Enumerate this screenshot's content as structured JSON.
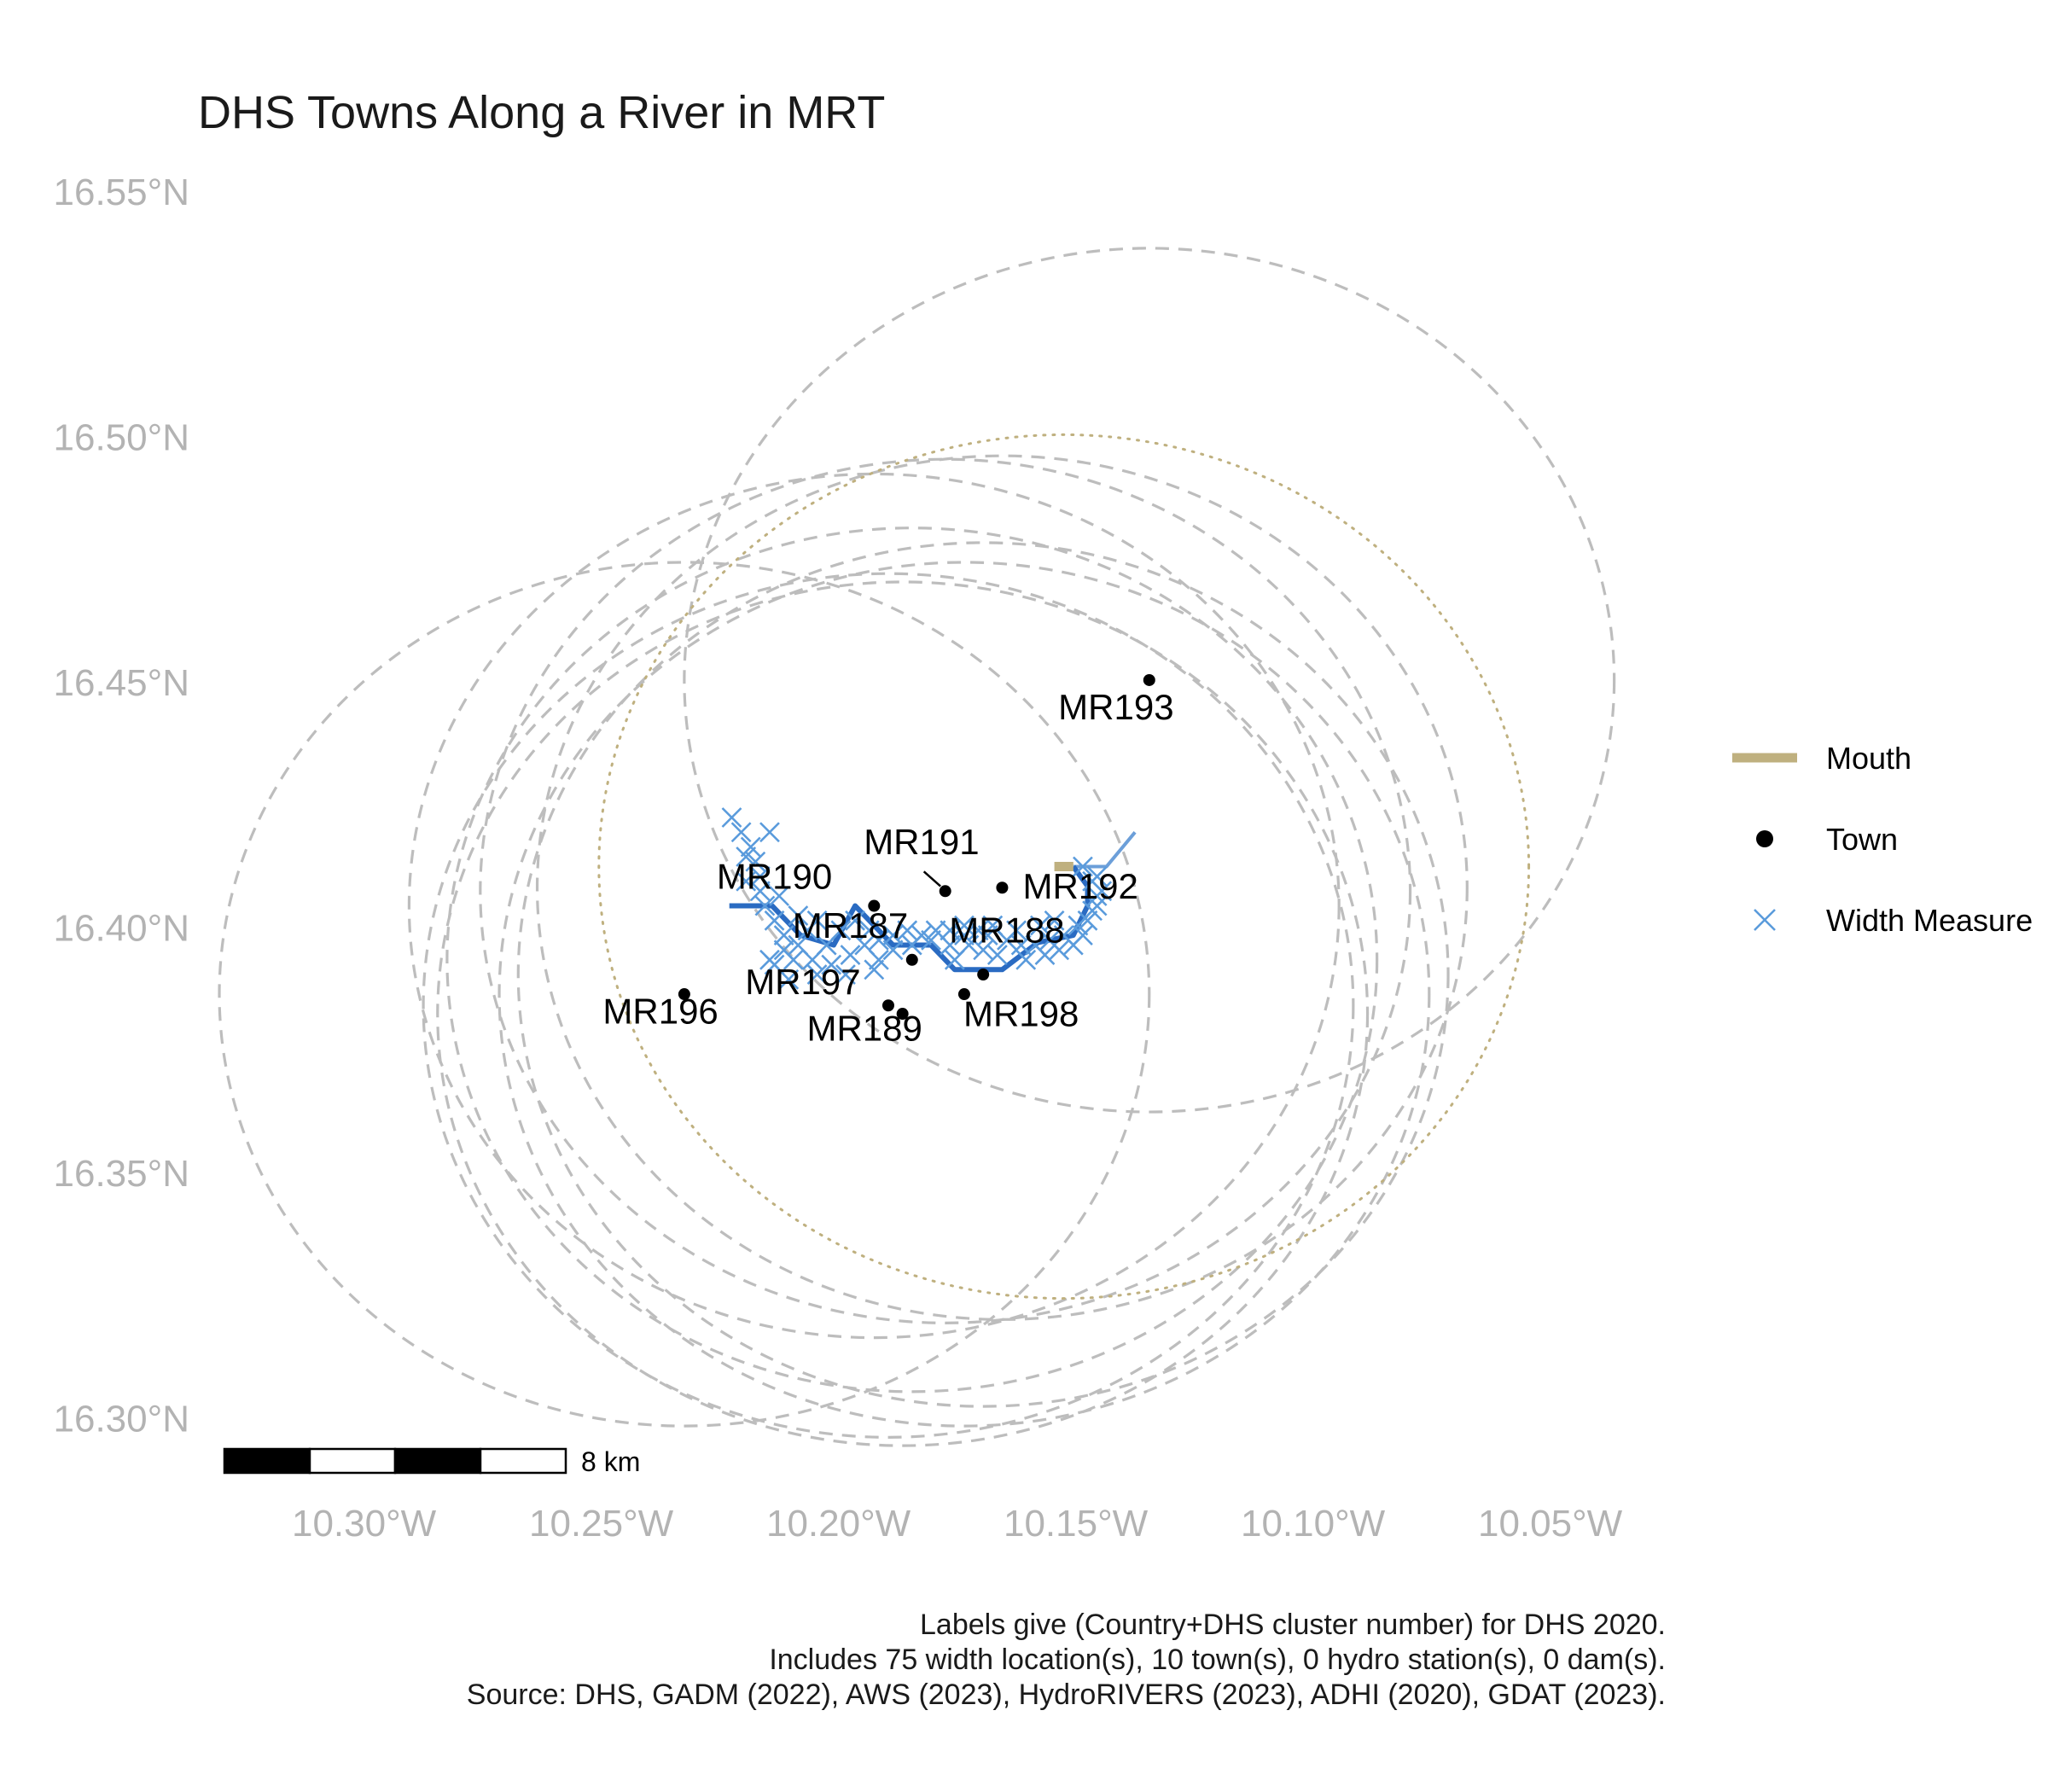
{
  "chart_data": {
    "type": "map",
    "title": "DHS Towns Along a River in MRT",
    "x_axis": {
      "range": [
        -10.335,
        -10.035
      ],
      "ticks": [
        {
          "value": -10.3,
          "label": "10.30°W"
        },
        {
          "value": -10.25,
          "label": "10.25°W"
        },
        {
          "value": -10.2,
          "label": "10.20°W"
        },
        {
          "value": -10.15,
          "label": "10.15°W"
        },
        {
          "value": -10.1,
          "label": "10.10°W"
        },
        {
          "value": -10.05,
          "label": "10.05°W"
        }
      ]
    },
    "y_axis": {
      "range": [
        16.29,
        16.555
      ],
      "ticks": [
        {
          "value": 16.55,
          "label": "16.55°N"
        },
        {
          "value": 16.5,
          "label": "16.50°N"
        },
        {
          "value": 16.45,
          "label": "16.45°N"
        },
        {
          "value": 16.4,
          "label": "16.40°N"
        },
        {
          "value": 16.35,
          "label": "16.35°N"
        },
        {
          "value": 16.3,
          "label": "16.30°N"
        }
      ]
    },
    "grid": false,
    "towns": [
      {
        "id": "MR187",
        "lon": -10.1845,
        "lat": 16.3935
      },
      {
        "id": "MR188",
        "lon": -10.1695,
        "lat": 16.3905
      },
      {
        "id": "MR189",
        "lon": -10.1865,
        "lat": 16.3825
      },
      {
        "id": "MR190",
        "lon": -10.1925,
        "lat": 16.4045
      },
      {
        "id": "MR191",
        "lon": -10.1775,
        "lat": 16.4075
      },
      {
        "id": "MR192",
        "lon": -10.1655,
        "lat": 16.4082
      },
      {
        "id": "MR193",
        "lon": -10.1345,
        "lat": 16.4505
      },
      {
        "id": "MR196",
        "lon": -10.2325,
        "lat": 16.3865
      },
      {
        "id": "MR197",
        "lon": -10.1895,
        "lat": 16.3842
      },
      {
        "id": "MR198",
        "lon": -10.1735,
        "lat": 16.3865
      }
    ],
    "buffers": [
      {
        "center_lon": -10.1345,
        "center_lat": 16.4505,
        "r_lon": 0.098,
        "r_lat": 0.088
      },
      {
        "center_lon": -10.2325,
        "center_lat": 16.3865,
        "r_lon": 0.098,
        "r_lat": 0.088
      },
      {
        "center_lon": -10.1925,
        "center_lat": 16.4045,
        "r_lon": 0.098,
        "r_lat": 0.088
      },
      {
        "center_lon": -10.1845,
        "center_lat": 16.3935,
        "r_lon": 0.098,
        "r_lat": 0.088
      },
      {
        "center_lon": -10.1695,
        "center_lat": 16.3905,
        "r_lon": 0.098,
        "r_lat": 0.088
      },
      {
        "center_lon": -10.1865,
        "center_lat": 16.3825,
        "r_lon": 0.098,
        "r_lat": 0.088
      },
      {
        "center_lon": -10.1775,
        "center_lat": 16.4075,
        "r_lon": 0.098,
        "r_lat": 0.088
      },
      {
        "center_lon": -10.1655,
        "center_lat": 16.4082,
        "r_lon": 0.098,
        "r_lat": 0.088
      },
      {
        "center_lon": -10.1895,
        "center_lat": 16.3842,
        "r_lon": 0.098,
        "r_lat": 0.088
      },
      {
        "center_lon": -10.1735,
        "center_lat": 16.3865,
        "r_lon": 0.098,
        "r_lat": 0.088
      }
    ],
    "mouth_buffer": {
      "center_lon": -10.1525,
      "center_lat": 16.4125,
      "r_lon": 0.098,
      "r_lat": 0.088
    },
    "river_main": [
      [
        -10.223,
        16.4045
      ],
      [
        -10.214,
        16.4045
      ],
      [
        -10.208,
        16.3985
      ],
      [
        -10.201,
        16.3965
      ],
      [
        -10.1965,
        16.4045
      ],
      [
        -10.1885,
        16.3965
      ],
      [
        -10.1805,
        16.3965
      ],
      [
        -10.1755,
        16.3915
      ],
      [
        -10.1655,
        16.3915
      ],
      [
        -10.158,
        16.397
      ],
      [
        -10.1505,
        16.3985
      ],
      [
        -10.1475,
        16.4045
      ],
      [
        -10.1475,
        16.4085
      ],
      [
        -10.1505,
        16.4125
      ]
    ],
    "river_upstream": [
      [
        -10.1505,
        16.4125
      ],
      [
        -10.1435,
        16.4125
      ],
      [
        -10.1375,
        16.4195
      ]
    ],
    "mouth": {
      "lon1": -10.1545,
      "lat1": 16.4125,
      "lon2": -10.1505,
      "lat2": 16.4125
    },
    "width_measures": [
      [
        -10.2225,
        16.4225
      ],
      [
        -10.2205,
        16.4195
      ],
      [
        -10.2185,
        16.4165
      ],
      [
        -10.2175,
        16.4135
      ],
      [
        -10.2165,
        16.4105
      ],
      [
        -10.2165,
        16.4075
      ],
      [
        -10.2155,
        16.4045
      ],
      [
        -10.2135,
        16.4015
      ],
      [
        -10.2115,
        16.3985
      ],
      [
        -10.2115,
        16.3955
      ],
      [
        -10.2135,
        16.3925
      ],
      [
        -10.2095,
        16.3935
      ],
      [
        -10.2055,
        16.3935
      ],
      [
        -10.2015,
        16.3925
      ],
      [
        -10.1975,
        16.3945
      ],
      [
        -10.1945,
        16.3965
      ],
      [
        -10.1915,
        16.3975
      ],
      [
        -10.1885,
        16.3985
      ],
      [
        -10.1855,
        16.3995
      ],
      [
        -10.1825,
        16.3985
      ],
      [
        -10.1795,
        16.3995
      ],
      [
        -10.1765,
        16.3995
      ],
      [
        -10.1735,
        16.3985
      ],
      [
        -10.1705,
        16.3995
      ],
      [
        -10.1675,
        16.4005
      ],
      [
        -10.1645,
        16.3975
      ],
      [
        -10.1615,
        16.3965
      ],
      [
        -10.1585,
        16.3965
      ],
      [
        -10.1555,
        16.3975
      ],
      [
        -10.1525,
        16.3985
      ],
      [
        -10.1495,
        16.4005
      ],
      [
        -10.1465,
        16.4035
      ],
      [
        -10.1455,
        16.4065
      ],
      [
        -10.1465,
        16.4095
      ],
      [
        -10.1485,
        16.4125
      ],
      [
        -10.2045,
        16.3905
      ],
      [
        -10.1985,
        16.3905
      ],
      [
        -10.1925,
        16.3915
      ],
      [
        -10.1695,
        16.3955
      ],
      [
        -10.1665,
        16.3945
      ],
      [
        -10.2085,
        16.3965
      ],
      [
        -10.2065,
        16.3995
      ],
      [
        -10.2025,
        16.3965
      ],
      [
        -10.1995,
        16.3995
      ],
      [
        -10.1965,
        16.4015
      ],
      [
        -10.1935,
        16.3995
      ],
      [
        -10.1885,
        16.3955
      ],
      [
        -10.1845,
        16.3965
      ],
      [
        -10.1805,
        16.3975
      ],
      [
        -10.1765,
        16.3965
      ],
      [
        -10.1725,
        16.3965
      ],
      [
        -10.1685,
        16.3985
      ],
      [
        -10.1625,
        16.3995
      ],
      [
        -10.1565,
        16.3945
      ],
      [
        -10.1535,
        16.3955
      ],
      [
        -10.1505,
        16.3965
      ],
      [
        -10.1485,
        16.3985
      ],
      [
        -10.1475,
        16.4015
      ],
      [
        -10.1455,
        16.4045
      ],
      [
        -10.2145,
        16.4195
      ],
      [
        -10.2195,
        16.4145
      ],
      [
        -10.2195,
        16.4095
      ],
      [
        -10.2125,
        16.4065
      ],
      [
        -10.2085,
        16.4025
      ],
      [
        -10.2045,
        16.4015
      ],
      [
        -10.2105,
        16.3895
      ],
      [
        -10.2145,
        16.3935
      ],
      [
        -10.1605,
        16.3935
      ],
      [
        -10.1575,
        16.4005
      ],
      [
        -10.1545,
        16.4015
      ],
      [
        -10.1445,
        16.4075
      ],
      [
        -10.1455,
        16.4105
      ],
      [
        -10.1915,
        16.3935
      ],
      [
        -10.1755,
        16.3935
      ],
      [
        -10.1735,
        16.4005
      ]
    ],
    "labels": [
      {
        "id": "MR187",
        "lon": -10.1975,
        "lat": 16.398
      },
      {
        "id": "MR188",
        "lon": -10.1645,
        "lat": 16.397
      },
      {
        "id": "MR189",
        "lon": -10.1945,
        "lat": 16.377
      },
      {
        "id": "MR190",
        "lon": -10.2135,
        "lat": 16.408
      },
      {
        "id": "MR191",
        "lon": -10.1825,
        "lat": 16.415
      },
      {
        "id": "MR192",
        "lon": -10.149,
        "lat": 16.406
      },
      {
        "id": "MR193",
        "lon": -10.1415,
        "lat": 16.4425
      },
      {
        "id": "MR196",
        "lon": -10.2375,
        "lat": 16.3805
      },
      {
        "id": "MR197",
        "lon": -10.2075,
        "lat": 16.3865
      },
      {
        "id": "MR198",
        "lon": -10.1615,
        "lat": 16.38
      }
    ],
    "leader_lines": [
      {
        "lon1": -10.182,
        "lat1": 16.4115,
        "lon2": -10.1785,
        "lat2": 16.4085
      }
    ],
    "legend": {
      "position": "right",
      "items": [
        {
          "label": "Mouth",
          "symbol": "line",
          "color": "#bfb07f"
        },
        {
          "label": "Town",
          "symbol": "dot",
          "color": "#000000"
        },
        {
          "label": "Width Measure",
          "symbol": "cross",
          "color": "#5a9bdc"
        }
      ]
    },
    "scale_bar": {
      "label": "8 km",
      "segments": 4
    },
    "caption": [
      "Labels give (Country+DHS cluster number) for DHS 2020.",
      "Includes 75 width location(s), 10 town(s), 0 hydro station(s), 0 dam(s).",
      "Source: DHS, GADM (2022), AWS (2023), HydroRIVERS (2023), ADHI (2020), GDAT (2023)."
    ],
    "colors": {
      "buffer": "#bdbdbd",
      "mouth_buffer": "#bfb07f",
      "river_main": "#2a6bc2",
      "river_upstream": "#6c9fd9",
      "width_measure": "#5a9bdc",
      "mouth": "#bfb07f",
      "town": "#000000"
    }
  }
}
